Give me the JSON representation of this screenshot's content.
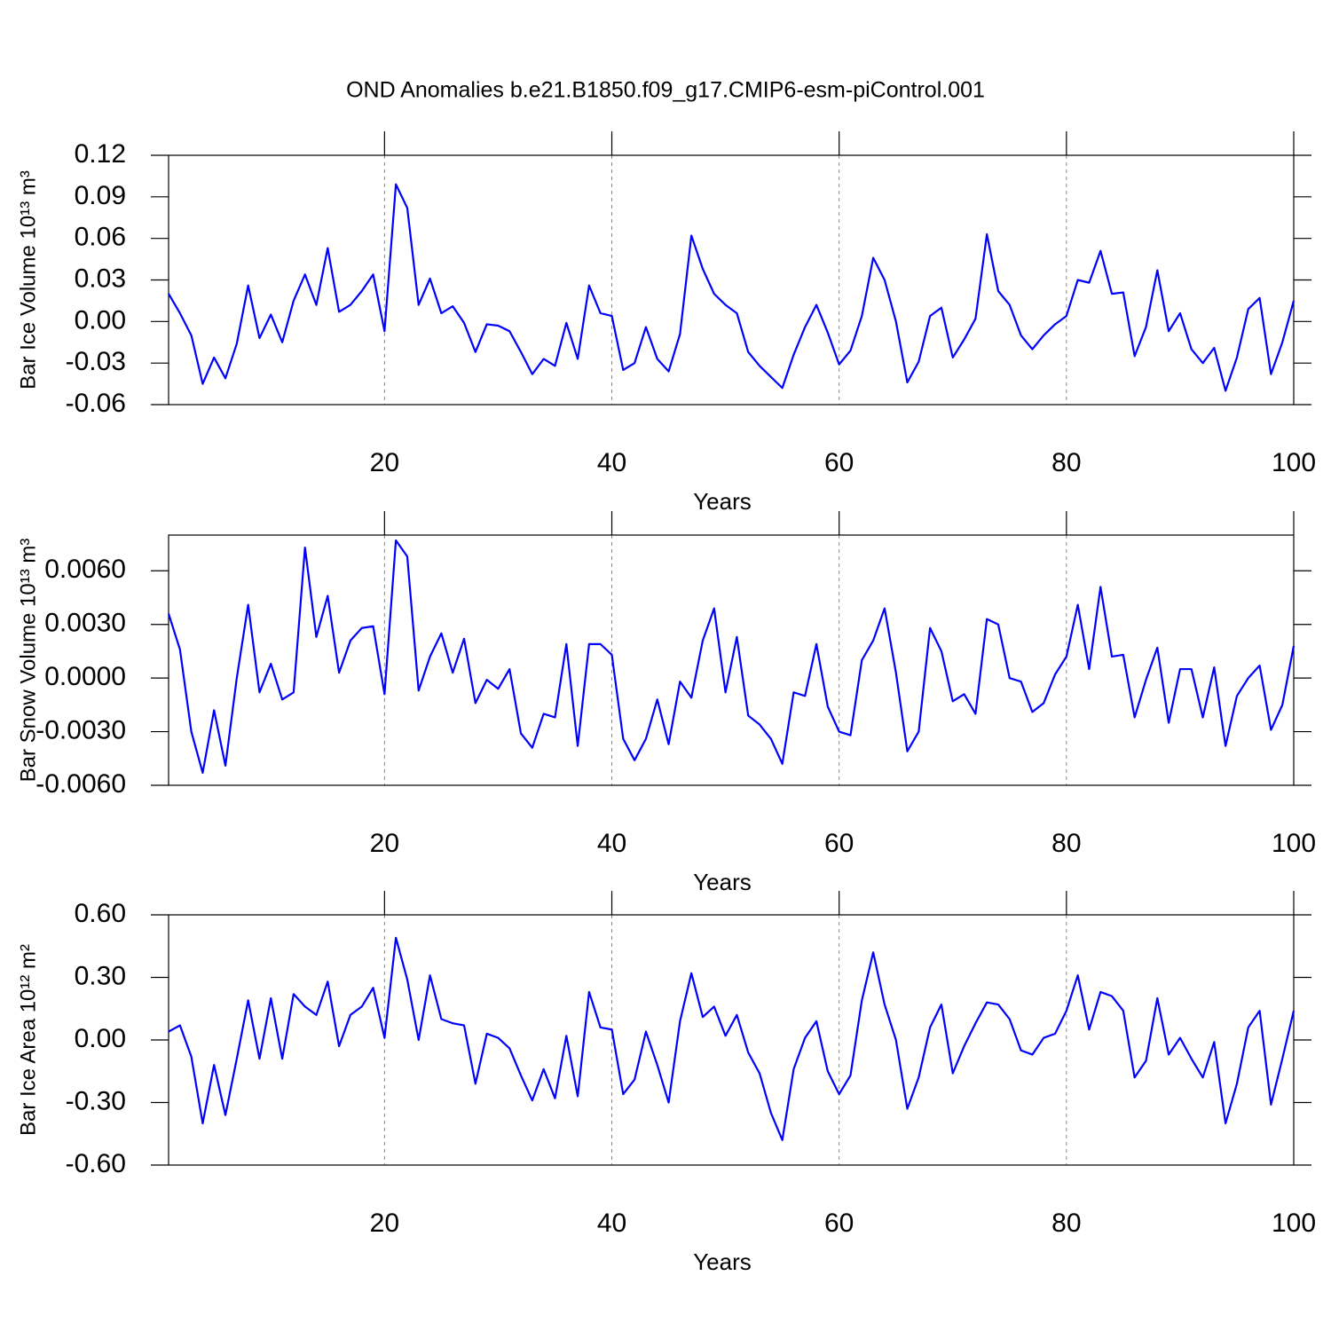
{
  "title": "OND Anomalies b.e21.B1850.f09_g17.CMIP6-esm-piControl.001",
  "chart_data": [
    {
      "type": "line",
      "ylabel": "Bar Ice Volume 10¹³ m³",
      "xlabel": "Years",
      "color": "#0000ff",
      "grid": true,
      "xlim": [
        1,
        100
      ],
      "xticks": [
        20,
        40,
        60,
        80,
        100
      ],
      "ylim": [
        -0.06,
        0.12
      ],
      "yticks": [
        0.12,
        0.09,
        0.06,
        0.03,
        {
          "value": 0,
          "label": "0.00"
        },
        -0.03,
        -0.06
      ],
      "x": [
        1,
        2,
        3,
        4,
        5,
        6,
        7,
        8,
        9,
        10,
        11,
        12,
        13,
        14,
        15,
        16,
        17,
        18,
        19,
        20,
        21,
        22,
        23,
        24,
        25,
        26,
        27,
        28,
        29,
        30,
        31,
        32,
        33,
        34,
        35,
        36,
        37,
        38,
        39,
        40,
        41,
        42,
        43,
        44,
        45,
        46,
        47,
        48,
        49,
        50,
        51,
        52,
        53,
        54,
        55,
        56,
        57,
        58,
        59,
        60,
        61,
        62,
        63,
        64,
        65,
        66,
        67,
        68,
        69,
        70,
        71,
        72,
        73,
        74,
        75,
        76,
        77,
        78,
        79,
        80,
        81,
        82,
        83,
        84,
        85,
        86,
        87,
        88,
        89,
        90,
        91,
        92,
        93,
        94,
        95,
        96,
        97,
        98,
        99,
        100
      ],
      "values": [
        0.02,
        0.006,
        -0.01,
        -0.045,
        -0.026,
        -0.041,
        -0.016,
        0.026,
        -0.012,
        0.005,
        -0.015,
        0.015,
        0.034,
        0.012,
        0.053,
        0.007,
        0.012,
        0.022,
        0.034,
        -0.007,
        0.099,
        0.082,
        0.012,
        0.031,
        0.006,
        0.011,
        -0.001,
        -0.022,
        -0.002,
        -0.003,
        -0.007,
        -0.022,
        -0.038,
        -0.027,
        -0.032,
        -0.001,
        -0.027,
        0.026,
        0.006,
        0.004,
        -0.035,
        -0.03,
        -0.004,
        -0.027,
        -0.036,
        -0.009,
        0.062,
        0.038,
        0.02,
        0.012,
        0.006,
        -0.022,
        -0.032,
        -0.04,
        -0.048,
        -0.024,
        -0.004,
        0.012,
        -0.008,
        -0.031,
        -0.021,
        0.004,
        0.046,
        0.03,
        0.0,
        -0.044,
        -0.029,
        0.004,
        0.01,
        -0.026,
        -0.013,
        0.002,
        0.063,
        0.022,
        0.012,
        -0.01,
        -0.02,
        -0.01,
        -0.002,
        0.004,
        0.03,
        0.028,
        0.051,
        0.02,
        0.021,
        -0.025,
        -0.004,
        0.037,
        -0.007,
        0.006,
        -0.02,
        -0.03,
        -0.019,
        -0.05,
        -0.026,
        0.009,
        0.017,
        -0.038,
        -0.015,
        0.015
      ]
    },
    {
      "type": "line",
      "ylabel": "Bar Snow Volume 10¹³ m³",
      "xlabel": "Years",
      "color": "#0000ff",
      "grid": true,
      "xlim": [
        1,
        100
      ],
      "xticks": [
        20,
        40,
        60,
        80,
        100
      ],
      "ylim": [
        -0.006,
        0.008
      ],
      "yticks": [
        {
          "value": 0.006,
          "label": "0.0060"
        },
        {
          "value": 0.003,
          "label": "0.0030"
        },
        {
          "value": 0,
          "label": "0.0000"
        },
        {
          "value": -0.003,
          "label": "-0.0030"
        },
        {
          "value": -0.006,
          "label": "-0.0060"
        }
      ],
      "x": [
        1,
        2,
        3,
        4,
        5,
        6,
        7,
        8,
        9,
        10,
        11,
        12,
        13,
        14,
        15,
        16,
        17,
        18,
        19,
        20,
        21,
        22,
        23,
        24,
        25,
        26,
        27,
        28,
        29,
        30,
        31,
        32,
        33,
        34,
        35,
        36,
        37,
        38,
        39,
        40,
        41,
        42,
        43,
        44,
        45,
        46,
        47,
        48,
        49,
        50,
        51,
        52,
        53,
        54,
        55,
        56,
        57,
        58,
        59,
        60,
        61,
        62,
        63,
        64,
        65,
        66,
        67,
        68,
        69,
        70,
        71,
        72,
        73,
        74,
        75,
        76,
        77,
        78,
        79,
        80,
        81,
        82,
        83,
        84,
        85,
        86,
        87,
        88,
        89,
        90,
        91,
        92,
        93,
        94,
        95,
        96,
        97,
        98,
        99,
        100
      ],
      "values": [
        0.0036,
        0.0016,
        -0.003,
        -0.0053,
        -0.0018,
        -0.0049,
        0.0,
        0.0041,
        -0.0008,
        0.0008,
        -0.0012,
        -0.0008,
        0.0073,
        0.0023,
        0.0046,
        0.0003,
        0.0021,
        0.0028,
        0.0029,
        -0.0009,
        0.0077,
        0.0068,
        -0.0007,
        0.0012,
        0.0025,
        0.0003,
        0.0022,
        -0.0014,
        -0.0001,
        -0.0006,
        0.0005,
        -0.0031,
        -0.0039,
        -0.002,
        -0.0022,
        0.0019,
        -0.0038,
        0.0019,
        0.0019,
        0.0013,
        -0.0034,
        -0.0046,
        -0.0034,
        -0.0012,
        -0.0037,
        -0.0002,
        -0.0011,
        0.0021,
        0.0039,
        -0.0008,
        0.0023,
        -0.0021,
        -0.0026,
        -0.0034,
        -0.0048,
        -0.0008,
        -0.001,
        0.0019,
        -0.0016,
        -0.003,
        -0.0032,
        0.001,
        0.0021,
        0.0039,
        0.0003,
        -0.0041,
        -0.003,
        0.0028,
        0.0015,
        -0.0013,
        -0.0009,
        -0.002,
        0.0033,
        0.003,
        0.0,
        -0.0002,
        -0.0019,
        -0.0014,
        0.0002,
        0.0012,
        0.0041,
        0.0005,
        0.0051,
        0.0012,
        0.0013,
        -0.0022,
        -0.0001,
        0.0017,
        -0.0025,
        0.0005,
        0.0005,
        -0.0022,
        0.0006,
        -0.0038,
        -0.001,
        0.0,
        0.0007,
        -0.0029,
        -0.0015,
        0.0018
      ]
    },
    {
      "type": "line",
      "ylabel": "Bar Ice Area 10¹² m²",
      "xlabel": "Years",
      "color": "#0000ff",
      "grid": true,
      "xlim": [
        1,
        100
      ],
      "xticks": [
        20,
        40,
        60,
        80,
        100
      ],
      "ylim": [
        -0.6,
        0.6
      ],
      "yticks": [
        {
          "value": 0.6,
          "label": "0.60"
        },
        {
          "value": 0.3,
          "label": "0.30"
        },
        {
          "value": 0,
          "label": "0.00"
        },
        {
          "value": -0.3,
          "label": "-0.30"
        },
        {
          "value": -0.6,
          "label": "-0.60"
        }
      ],
      "x": [
        1,
        2,
        3,
        4,
        5,
        6,
        7,
        8,
        9,
        10,
        11,
        12,
        13,
        14,
        15,
        16,
        17,
        18,
        19,
        20,
        21,
        22,
        23,
        24,
        25,
        26,
        27,
        28,
        29,
        30,
        31,
        32,
        33,
        34,
        35,
        36,
        37,
        38,
        39,
        40,
        41,
        42,
        43,
        44,
        45,
        46,
        47,
        48,
        49,
        50,
        51,
        52,
        53,
        54,
        55,
        56,
        57,
        58,
        59,
        60,
        61,
        62,
        63,
        64,
        65,
        66,
        67,
        68,
        69,
        70,
        71,
        72,
        73,
        74,
        75,
        76,
        77,
        78,
        79,
        80,
        81,
        82,
        83,
        84,
        85,
        86,
        87,
        88,
        89,
        90,
        91,
        92,
        93,
        94,
        95,
        96,
        97,
        98,
        99,
        100
      ],
      "values": [
        0.04,
        0.07,
        -0.08,
        -0.4,
        -0.12,
        -0.36,
        -0.09,
        0.19,
        -0.09,
        0.2,
        -0.09,
        0.22,
        0.16,
        0.12,
        0.28,
        -0.03,
        0.12,
        0.16,
        0.25,
        0.01,
        0.49,
        0.29,
        0.0,
        0.31,
        0.1,
        0.08,
        0.07,
        -0.21,
        0.03,
        0.01,
        -0.04,
        -0.17,
        -0.29,
        -0.14,
        -0.28,
        0.02,
        -0.27,
        0.23,
        0.06,
        0.05,
        -0.26,
        -0.19,
        0.04,
        -0.12,
        -0.3,
        0.09,
        0.32,
        0.11,
        0.16,
        0.02,
        0.12,
        -0.06,
        -0.16,
        -0.35,
        -0.48,
        -0.14,
        0.01,
        0.09,
        -0.15,
        -0.26,
        -0.17,
        0.19,
        0.42,
        0.17,
        0.0,
        -0.33,
        -0.18,
        0.06,
        0.17,
        -0.16,
        -0.03,
        0.08,
        0.18,
        0.17,
        0.1,
        -0.05,
        -0.07,
        0.01,
        0.03,
        0.14,
        0.31,
        0.05,
        0.23,
        0.21,
        0.14,
        -0.18,
        -0.1,
        0.2,
        -0.07,
        0.01,
        -0.09,
        -0.18,
        -0.01,
        -0.4,
        -0.21,
        0.06,
        0.14,
        -0.31,
        -0.09,
        0.14
      ]
    }
  ]
}
